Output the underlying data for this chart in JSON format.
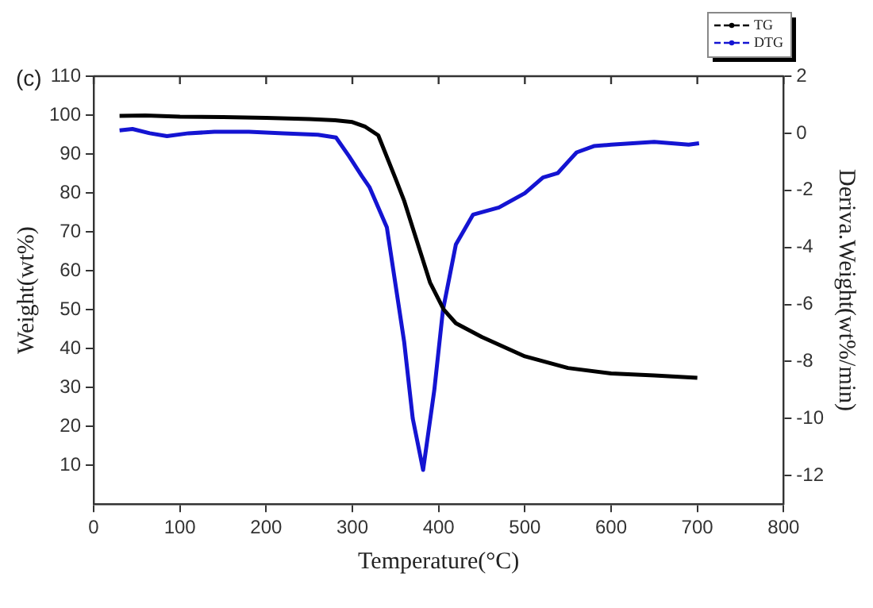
{
  "chart_data": {
    "type": "line",
    "title": "(c)",
    "xlabel": "Temperature(°C)",
    "ylabel": "Weight(wt%)",
    "y2label": "Deriva.Weight(wt%/min)",
    "xlim": [
      0,
      800
    ],
    "xticks": [
      0,
      100,
      200,
      300,
      400,
      500,
      600,
      700,
      800
    ],
    "ylim": [
      0,
      110
    ],
    "yticks": [
      10,
      20,
      30,
      40,
      50,
      60,
      70,
      80,
      90,
      100,
      110
    ],
    "y2lim": [
      -13,
      2
    ],
    "y2ticks": [
      2,
      0,
      -2,
      -4,
      -6,
      -8,
      -10,
      -12
    ],
    "grid": false,
    "legend": "top right",
    "line_style": "solid",
    "series": [
      {
        "name": "TG",
        "color": "#000000",
        "x": [
          30,
          60,
          100,
          150,
          200,
          250,
          280,
          300,
          315,
          330,
          350,
          360,
          370,
          380,
          390,
          406,
          420,
          450,
          500,
          550,
          600,
          650,
          700
        ],
        "values": [
          99.8,
          99.9,
          99.6,
          99.5,
          99.3,
          99.0,
          98.7,
          98.2,
          97.0,
          94.8,
          83.7,
          78,
          71,
          64,
          57,
          50,
          46.5,
          43,
          38,
          35,
          33.6,
          33.1,
          32.5
        ]
      },
      {
        "name": "DTG",
        "color": "#1414d2",
        "axis": "y2",
        "x": [
          30,
          45,
          65,
          85,
          110,
          140,
          180,
          220,
          260,
          281,
          296,
          311,
          320,
          340,
          360,
          370,
          382,
          395,
          405,
          420,
          440,
          470,
          500,
          521,
          538,
          550,
          560,
          580,
          600,
          650,
          690,
          702
        ],
        "values": [
          0.1,
          0.15,
          0.0,
          -0.1,
          0.0,
          0.05,
          0.05,
          0.0,
          -0.05,
          -0.15,
          -0.8,
          -1.5,
          -1.9,
          -3.3,
          -7.3,
          -10,
          -11.8,
          -9,
          -6.2,
          -3.9,
          -2.85,
          -2.6,
          -2.1,
          -1.55,
          -1.4,
          -1.0,
          -0.67,
          -0.45,
          -0.4,
          -0.3,
          -0.4,
          -0.35
        ]
      }
    ]
  }
}
